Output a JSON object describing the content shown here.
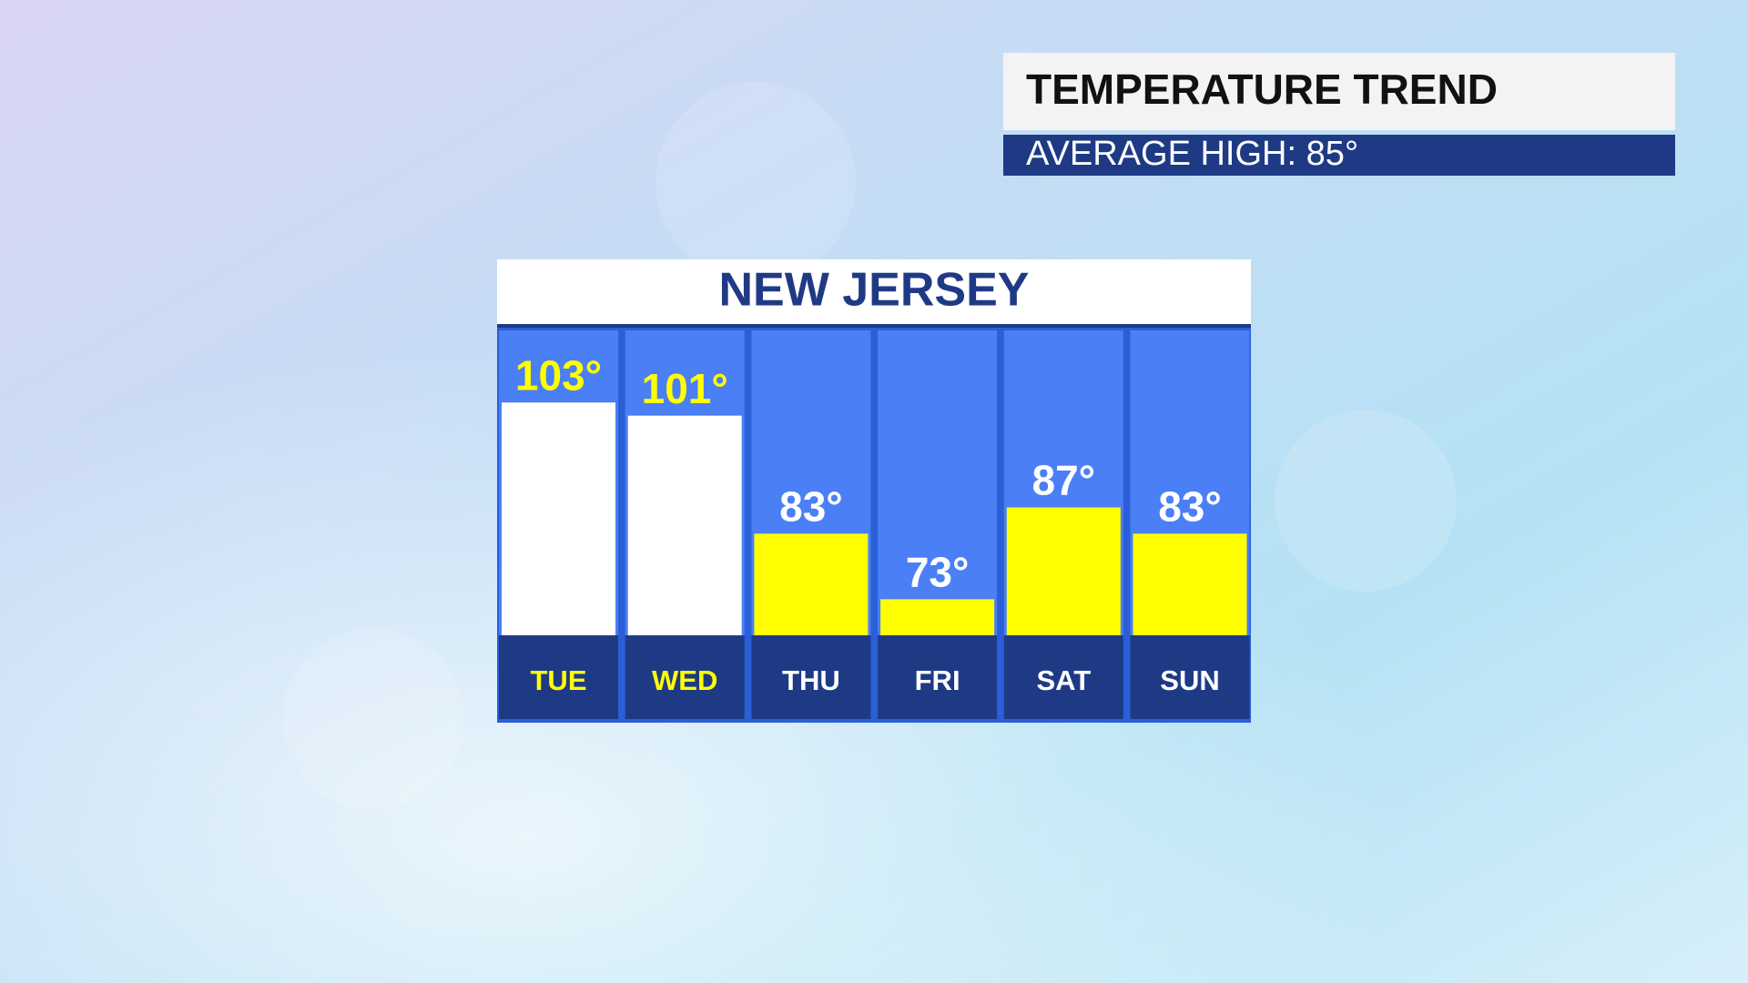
{
  "chart_data": {
    "type": "bar",
    "header_title": "TEMPERATURE TREND",
    "header_subtitle": "AVERAGE HIGH: 85°",
    "title": "NEW JERSEY",
    "categories": [
      "TUE",
      "WED",
      "THU",
      "FRI",
      "SAT",
      "SUN"
    ],
    "values": [
      103,
      101,
      83,
      73,
      87,
      83
    ],
    "value_labels": [
      "103°",
      "101°",
      "83°",
      "73°",
      "87°",
      "83°"
    ],
    "bar_colors": [
      "#ffffff",
      "#ffffff",
      "#ffff00",
      "#ffff00",
      "#ffff00",
      "#ffff00"
    ],
    "label_colors": [
      "#ffff00",
      "#ffff00",
      "#ffffff",
      "#ffffff",
      "#ffffff",
      "#ffffff"
    ],
    "ylim": [
      67.5,
      114
    ]
  }
}
